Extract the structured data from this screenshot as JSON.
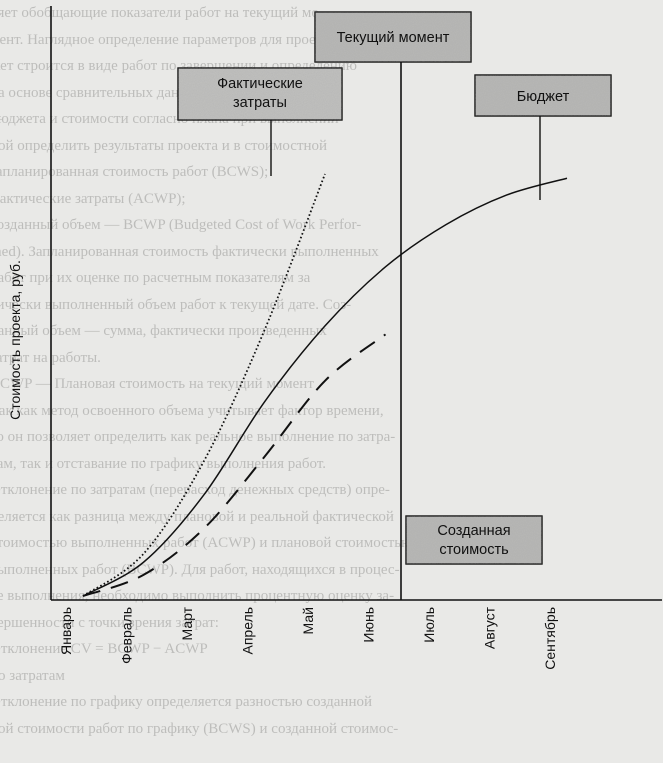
{
  "chart_data": {
    "type": "line",
    "title": "",
    "ylabel": "Стоимость проекта, руб.",
    "xlabel": "",
    "categories": [
      "Январь",
      "Февраль",
      "Март",
      "Апрель",
      "Май",
      "Июнь",
      "Июль",
      "Август",
      "Сентябрь"
    ],
    "current_moment_category": "Июнь",
    "series": [
      {
        "name": "Бюджет",
        "style": "solid",
        "values": [
          0,
          8,
          24,
          46,
          64,
          78,
          88,
          95,
          99
        ]
      },
      {
        "name": "Фактические затраты",
        "style": "dotted",
        "values": [
          0,
          10,
          32,
          63,
          100,
          null,
          null,
          null,
          null
        ]
      },
      {
        "name": "Созданная стоимость",
        "style": "dashed",
        "values": [
          0,
          5,
          16,
          33,
          51,
          62,
          null,
          null,
          null
        ]
      }
    ],
    "annotations": {
      "current": "Текущий момент",
      "actual": "Фактические затраты",
      "budget": "Бюджет",
      "earned": "Созданная стоимость"
    },
    "grid": false,
    "legend": "none"
  },
  "background_text": [
    "ляет обобщающие показатели работ на текущий мо",
    "мент. Наглядное определение параметров для проекта бюд",
    "жет строится в виде работ по завершении и определению",
    "на основе сравнительных данных о выполнении работ",
    "бюджета и стоимости согласно плана при выполнении",
    "ной определить результаты проекта и в стоимостной",
    "запланированная стоимость работ (BCWS);",
    "фактические затраты (ACWP);",
    "созданный объем — BCWP (Budgeted Cost of Work Perfor-",
    "med). Запланированная стоимость фактически выполненных",
    "работ при их оценке по расчетным показателям за",
    "тически выполненный объем работ к текущей дате. Соз-",
    "данный объем — сумма, фактически произведенных",
    "затрат на работы.",
    "BCWP — Плановая стоимость на текущий момент",
    "Так как метод освоенного объема учитывает фактор времени,",
    "то он позволяет определить как реальное выполнение по затра-",
    "там, так и отставание по графику выполнения работ.",
    "Отклонение по затратам (перерасход денежных средств) опре-",
    "деляется как разница между плановой и реальной фактической",
    "стоимостью выполненных работ (ACWP) и плановой стоимостью",
    "выполненных работ (BCWP). Для работ, находящихся в процес-",
    "се выполнения, необходимо выполнить процентную оценку за-",
    "вершенности с точки зрения затрат:",
    "Отклонение    CV = BCWP − ACWP",
    "по затратам",
    "Отклонение по графику определяется разностью созданной",
    "ной стоимости работ по графику (BCWS) и созданной стоимос-"
  ]
}
